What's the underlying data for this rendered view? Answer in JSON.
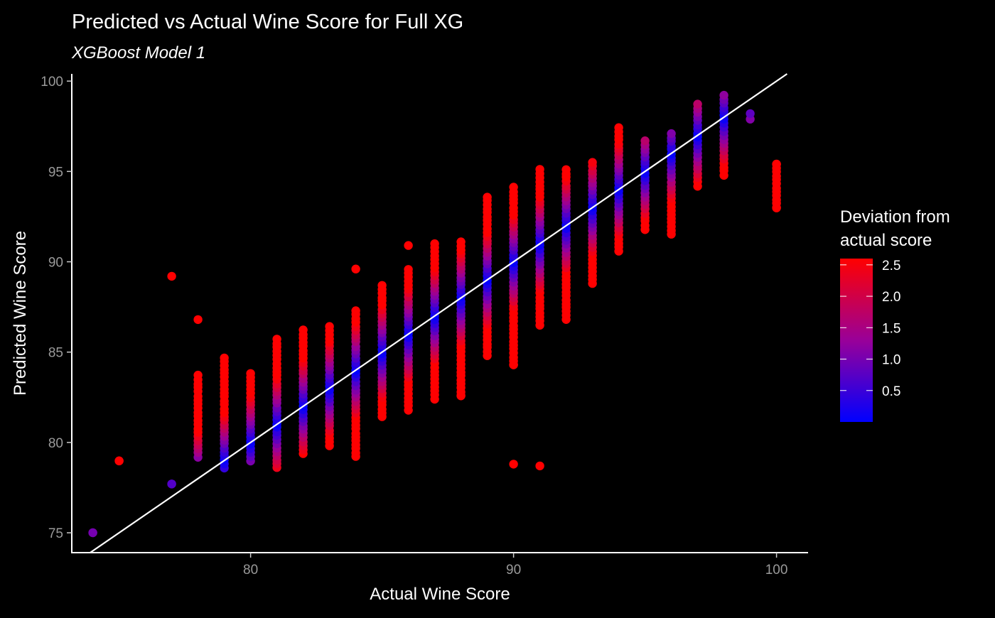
{
  "chart_data": {
    "type": "scatter",
    "title": "Predicted vs Actual Wine Score for Full XG",
    "subtitle": "XGBoost Model 1",
    "xlabel": "Actual Wine Score",
    "ylabel": "Predicted Wine Score",
    "xlim": [
      73.2,
      101.2
    ],
    "ylim": [
      73.9,
      100.4
    ],
    "x_ticks": [
      80,
      90,
      100
    ],
    "y_ticks": [
      75,
      80,
      85,
      90,
      95,
      100
    ],
    "x_tick_labels": [
      "80",
      "90",
      "100"
    ],
    "y_tick_labels": [
      "75",
      "80",
      "85",
      "90",
      "95",
      "100"
    ],
    "grid": false,
    "reference_line": {
      "type": "identity",
      "color": "#ffffff"
    },
    "legend": {
      "title_lines": [
        "Deviation from",
        "actual score"
      ],
      "position": "right",
      "color_low": "#0000ff",
      "color_mid": "#990099",
      "color_high": "#ff0000",
      "min": 0.0,
      "max": 2.6,
      "ticks": [
        0.5,
        1.0,
        1.5,
        2.0,
        2.5
      ],
      "tick_labels": [
        "0.5",
        "1.0",
        "1.5",
        "2.0",
        "2.5"
      ]
    },
    "columns": [
      {
        "x": 74,
        "min": 75.0,
        "max": 75.0
      },
      {
        "x": 75,
        "min": 79.0,
        "max": 79.0
      },
      {
        "x": 77,
        "min": 77.7,
        "max": 77.7
      },
      {
        "x": 78,
        "min": 79.2,
        "max": 83.7
      },
      {
        "x": 79,
        "min": 78.6,
        "max": 84.7
      },
      {
        "x": 80,
        "min": 79.0,
        "max": 83.8
      },
      {
        "x": 81,
        "min": 78.6,
        "max": 85.7
      },
      {
        "x": 82,
        "min": 79.4,
        "max": 86.2
      },
      {
        "x": 83,
        "min": 79.8,
        "max": 86.4
      },
      {
        "x": 84,
        "min": 79.2,
        "max": 87.3
      },
      {
        "x": 85,
        "min": 81.4,
        "max": 88.7
      },
      {
        "x": 86,
        "min": 81.8,
        "max": 89.6
      },
      {
        "x": 87,
        "min": 82.4,
        "max": 91.0
      },
      {
        "x": 88,
        "min": 82.6,
        "max": 91.1
      },
      {
        "x": 89,
        "min": 84.8,
        "max": 93.6
      },
      {
        "x": 90,
        "min": 84.3,
        "max": 94.1
      },
      {
        "x": 91,
        "min": 86.5,
        "max": 95.1
      },
      {
        "x": 92,
        "min": 86.8,
        "max": 95.1
      },
      {
        "x": 93,
        "min": 88.8,
        "max": 95.5
      },
      {
        "x": 94,
        "min": 90.6,
        "max": 97.4
      },
      {
        "x": 95,
        "min": 91.8,
        "max": 96.7
      },
      {
        "x": 96,
        "min": 91.5,
        "max": 97.1
      },
      {
        "x": 97,
        "min": 94.2,
        "max": 98.7
      },
      {
        "x": 98,
        "min": 94.8,
        "max": 99.2
      },
      {
        "x": 99,
        "min": 97.9,
        "max": 98.2
      },
      {
        "x": 100,
        "min": 93.0,
        "max": 95.4
      }
    ],
    "outliers": [
      {
        "x": 77,
        "y": 89.2
      },
      {
        "x": 78,
        "y": 86.8
      },
      {
        "x": 84,
        "y": 89.6
      },
      {
        "x": 86,
        "y": 90.9
      },
      {
        "x": 90,
        "y": 78.8
      },
      {
        "x": 91,
        "y": 78.7
      },
      {
        "x": 100,
        "y": 95.4
      },
      {
        "x": 100,
        "y": 93.0
      },
      {
        "x": 90,
        "y": 84.3
      },
      {
        "x": 88,
        "y": 82.6
      }
    ]
  }
}
